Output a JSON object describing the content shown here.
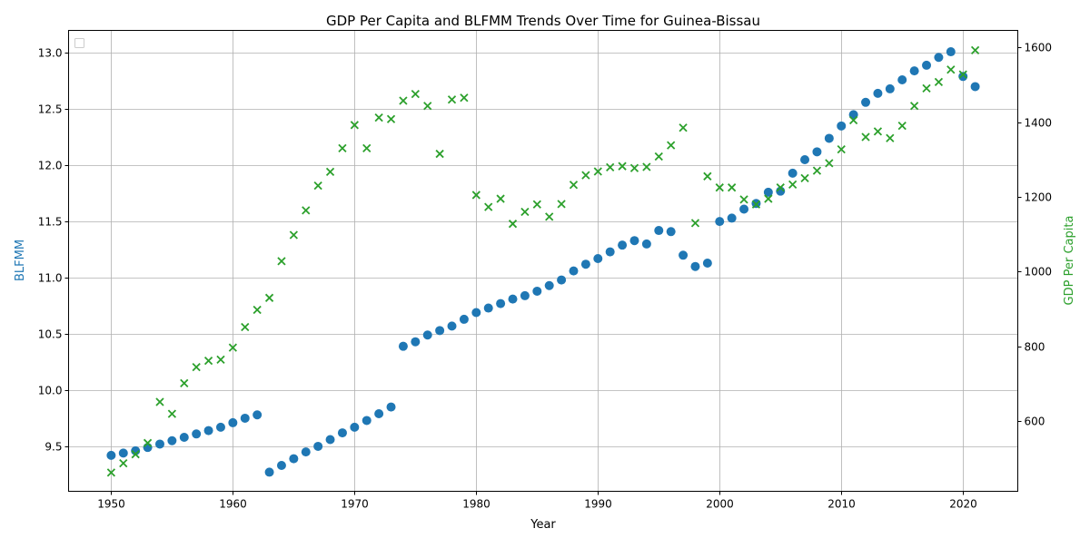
{
  "chart_data": {
    "type": "scatter",
    "title": "GDP Per Capita and BLFMM Trends Over Time for Guinea-Bissau",
    "xlabel": "Year",
    "ylabel_left": "BLFMM",
    "ylabel_right": "GDP Per Capita",
    "xlim": [
      1946.5,
      2024.5
    ],
    "ylim_left": [
      9.1,
      13.2
    ],
    "ylim_right": [
      413,
      1645
    ],
    "x_ticks": [
      1950,
      1960,
      1970,
      1980,
      1990,
      2000,
      2010,
      2020
    ],
    "y_left_ticks": [
      9.5,
      10.0,
      10.5,
      11.0,
      11.5,
      12.0,
      12.5,
      13.0
    ],
    "y_left_tick_labels": [
      "9.5",
      "10.0",
      "10.5",
      "11.0",
      "11.5",
      "12.0",
      "12.5",
      "13.0"
    ],
    "y_right_ticks": [
      600,
      800,
      1000,
      1200,
      1400,
      1600
    ],
    "grid": true,
    "legend": "top-left (empty)",
    "colors": {
      "blfmm": "#1f77b4",
      "gdp": "#2ca02c"
    },
    "series": [
      {
        "axis": "left",
        "marker": "circle",
        "x": [
          1950,
          1951,
          1952,
          1953,
          1954,
          1955,
          1956,
          1957,
          1958,
          1959,
          1960,
          1961,
          1962,
          1963,
          1964,
          1965,
          1966,
          1967,
          1968,
          1969,
          1970,
          1971,
          1972,
          1973,
          1974,
          1975,
          1976,
          1977,
          1978,
          1979,
          1980,
          1981,
          1982,
          1983,
          1984,
          1985,
          1986,
          1987,
          1988,
          1989,
          1990,
          1991,
          1992,
          1993,
          1994,
          1995,
          1996,
          1997,
          1998,
          1999,
          2000,
          2001,
          2002,
          2003,
          2004,
          2005,
          2006,
          2007,
          2008,
          2009,
          2010,
          2011,
          2012,
          2013,
          2014,
          2015,
          2016,
          2017,
          2018,
          2019,
          2020,
          2021
        ],
        "values": [
          9.42,
          9.44,
          9.46,
          9.49,
          9.52,
          9.55,
          9.58,
          9.61,
          9.64,
          9.67,
          9.71,
          9.75,
          9.78,
          9.27,
          9.33,
          9.39,
          9.45,
          9.5,
          9.56,
          9.62,
          9.67,
          9.73,
          9.79,
          9.85,
          10.39,
          10.43,
          10.49,
          10.53,
          10.57,
          10.63,
          10.69,
          10.73,
          10.77,
          10.81,
          10.84,
          10.88,
          10.93,
          10.98,
          11.06,
          11.12,
          11.17,
          11.23,
          11.29,
          11.33,
          11.3,
          11.42,
          11.41,
          11.2,
          11.1,
          11.13,
          11.5,
          11.53,
          11.61,
          11.66,
          11.76,
          11.77,
          11.93,
          12.05,
          12.12,
          12.24,
          12.35,
          12.45,
          12.56,
          12.64,
          12.68,
          12.76,
          12.84,
          12.89,
          12.96,
          13.01,
          12.79,
          12.7
        ]
      },
      {
        "axis": "right",
        "marker": "x",
        "x": [
          1950,
          1951,
          1952,
          1953,
          1954,
          1955,
          1956,
          1957,
          1958,
          1959,
          1960,
          1961,
          1962,
          1963,
          1964,
          1965,
          1966,
          1967,
          1968,
          1969,
          1970,
          1971,
          1972,
          1973,
          1974,
          1975,
          1976,
          1977,
          1978,
          1979,
          1980,
          1981,
          1982,
          1983,
          1984,
          1985,
          1986,
          1987,
          1988,
          1989,
          1990,
          1991,
          1992,
          1993,
          1994,
          1995,
          1996,
          1997,
          1998,
          1999,
          2000,
          2001,
          2002,
          2003,
          2004,
          2005,
          2006,
          2007,
          2008,
          2009,
          2010,
          2011,
          2012,
          2013,
          2014,
          2015,
          2016,
          2017,
          2018,
          2019,
          2020,
          2021
        ],
        "values": [
          463,
          488,
          512,
          542,
          652,
          620,
          702,
          745,
          762,
          765,
          797,
          852,
          898,
          930,
          1028,
          1098,
          1164,
          1230,
          1267,
          1330,
          1392,
          1330,
          1412,
          1408,
          1457,
          1475,
          1443,
          1315,
          1460,
          1465,
          1205,
          1173,
          1195,
          1128,
          1160,
          1180,
          1147,
          1181,
          1232,
          1258,
          1268,
          1279,
          1282,
          1277,
          1280,
          1308,
          1338,
          1385,
          1130,
          1255,
          1225,
          1225,
          1193,
          1180,
          1195,
          1225,
          1233,
          1250,
          1270,
          1290,
          1327,
          1405,
          1360,
          1375,
          1357,
          1390,
          1443,
          1490,
          1507,
          1540,
          1527,
          1592
        ]
      }
    ]
  }
}
